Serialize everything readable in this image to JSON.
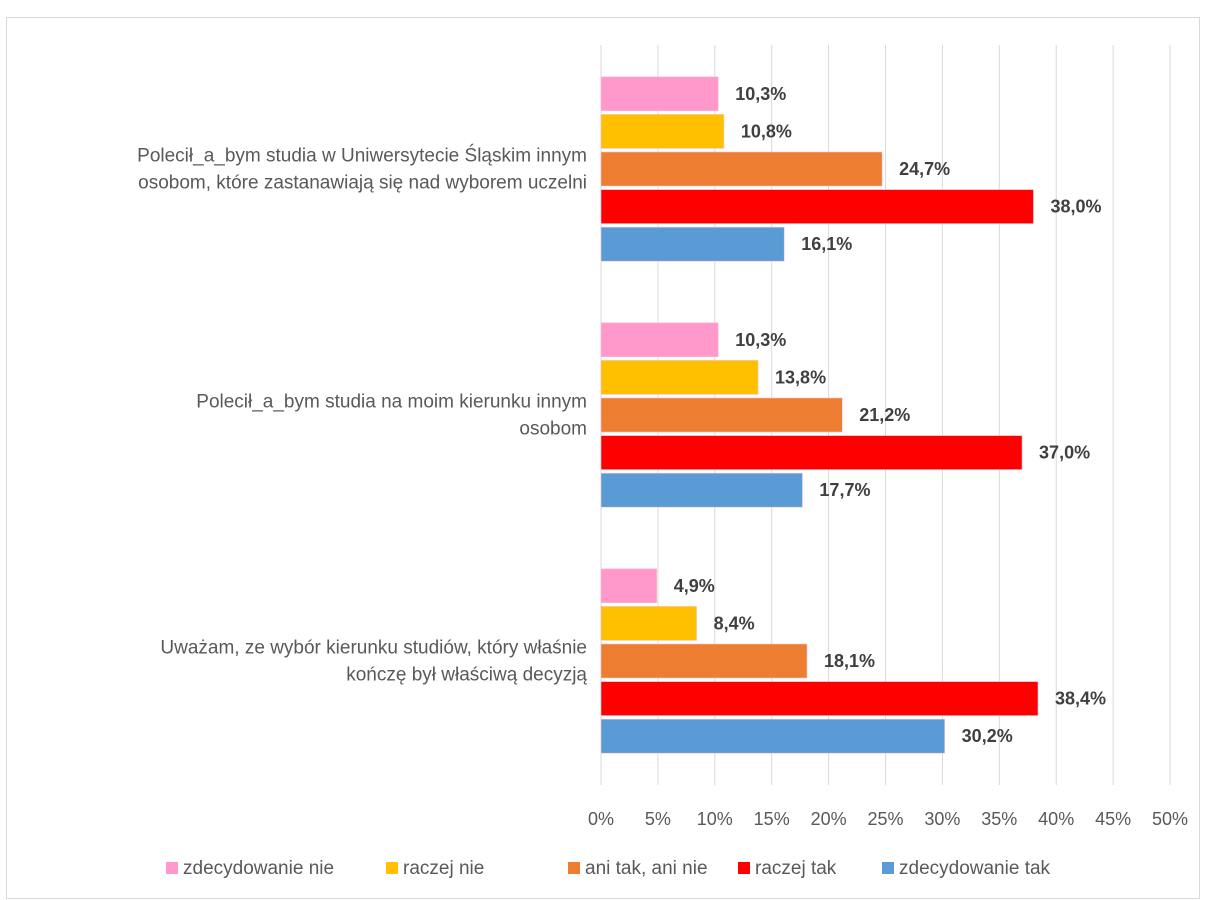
{
  "chart_data": {
    "type": "bar",
    "orientation": "horizontal",
    "categories": [
      "Polecił_a_bym studia w Uniwersytecie Śląskim innym osobom, które zastanawiają się nad wyborem uczelni",
      "Polecił_a_bym studia na moim kierunku innym osobom",
      "Uważam, ze wybór kierunku studiów, który właśnie kończę był właściwą decyzją"
    ],
    "category_lines": [
      [
        "Polecił_a_bym studia w Uniwersytecie Śląskim innym",
        "osobom, które zastanawiają się nad wyborem uczelni"
      ],
      [
        "Polecił_a_bym studia na moim kierunku innym",
        "osobom"
      ],
      [
        "Uważam, ze wybór kierunku studiów, który właśnie",
        "kończę był właściwą decyzją"
      ]
    ],
    "series": [
      {
        "name": "zdecydowanie nie",
        "color": "#ff99cc",
        "values": [
          10.3,
          10.3,
          4.9
        ],
        "labels": [
          "10,3%",
          "10,3%",
          "4,9%"
        ]
      },
      {
        "name": "raczej nie",
        "color": "#ffc000",
        "values": [
          10.8,
          13.8,
          8.4
        ],
        "labels": [
          "10,8%",
          "13,8%",
          "8,4%"
        ]
      },
      {
        "name": "ani tak, ani nie",
        "color": "#ed7d31",
        "values": [
          24.7,
          21.2,
          18.1
        ],
        "labels": [
          "24,7%",
          "21,2%",
          "18,1%"
        ]
      },
      {
        "name": "raczej tak",
        "color": "#ff0000",
        "values": [
          38.0,
          37.0,
          38.4
        ],
        "labels": [
          "38,0%",
          "37,0%",
          "38,4%"
        ]
      },
      {
        "name": "zdecydowanie tak",
        "color": "#5b9bd5",
        "values": [
          16.1,
          17.7,
          30.2
        ],
        "labels": [
          "16,1%",
          "17,7%",
          "30,2%"
        ]
      }
    ],
    "xlim": [
      0,
      50
    ],
    "xticks": [
      "0%",
      "5%",
      "10%",
      "15%",
      "20%",
      "25%",
      "30%",
      "35%",
      "40%",
      "45%",
      "50%"
    ],
    "grid": "vertical",
    "legend_position": "bottom",
    "title": "",
    "xlabel": "",
    "ylabel": ""
  }
}
